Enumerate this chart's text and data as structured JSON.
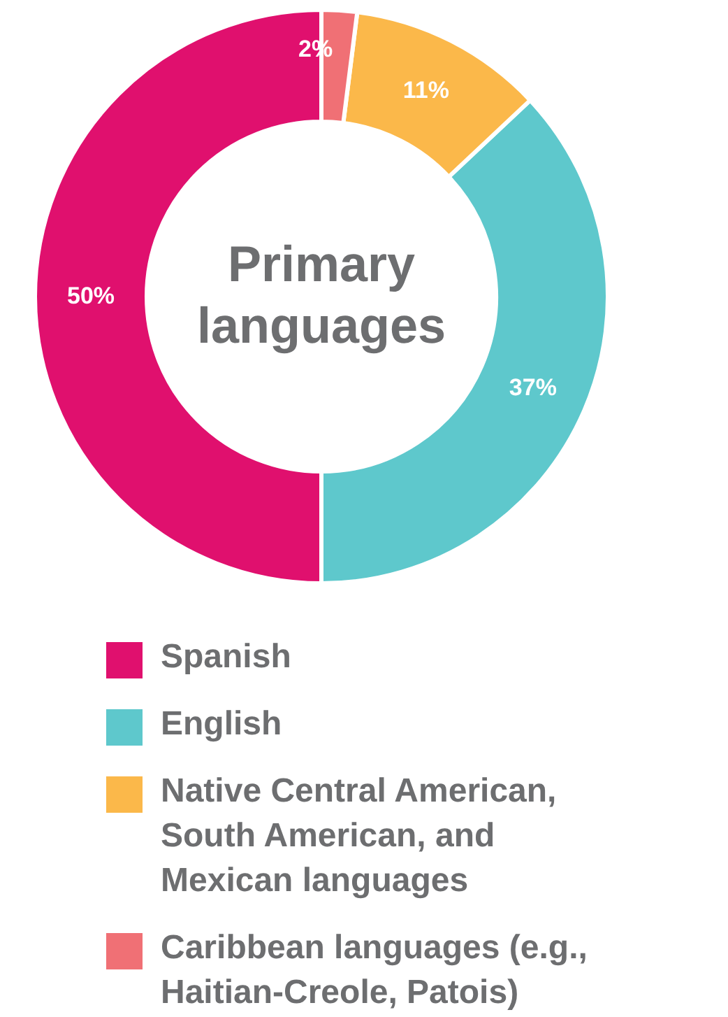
{
  "chart_data": {
    "type": "donut",
    "title": "Primary languages",
    "categories": [
      "Spanish",
      "English",
      "Native Central American, South American, and Mexican languages",
      "Caribbean languages (e.g., Haitian-Creole, Patois)"
    ],
    "values": [
      50,
      37,
      11,
      2
    ],
    "colors": [
      "#e0106e",
      "#5ec8cc",
      "#fbb84a",
      "#f07075"
    ],
    "value_labels": [
      "50%",
      "37%",
      "11%",
      "2%"
    ],
    "legend": "bottom"
  }
}
